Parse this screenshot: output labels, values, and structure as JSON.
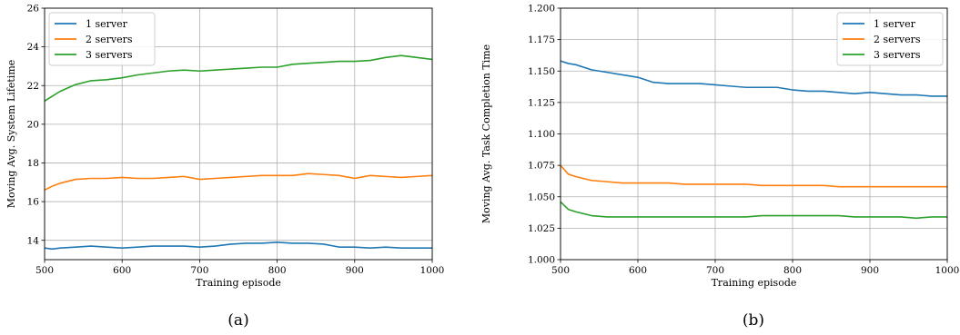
{
  "chart_data": [
    {
      "type": "line",
      "caption": "(a)",
      "xlabel": "Training episode",
      "ylabel": "Moving Avg. System Lifetime",
      "xlim": [
        500,
        1000
      ],
      "ylim": [
        13,
        26
      ],
      "xticks": [
        "500",
        "600",
        "700",
        "800",
        "900",
        "1000"
      ],
      "yticks": [
        "14",
        "16",
        "18",
        "20",
        "22",
        "24",
        "26"
      ],
      "grid": true,
      "legend_position": "top-left",
      "x": [
        500,
        510,
        520,
        540,
        560,
        580,
        600,
        620,
        640,
        660,
        680,
        700,
        720,
        740,
        760,
        780,
        800,
        820,
        840,
        860,
        880,
        900,
        920,
        940,
        960,
        980,
        1000
      ],
      "series": [
        {
          "name": "1 server",
          "color": "#1f77b4",
          "values": [
            13.6,
            13.55,
            13.6,
            13.65,
            13.7,
            13.65,
            13.6,
            13.65,
            13.7,
            13.7,
            13.7,
            13.65,
            13.7,
            13.8,
            13.85,
            13.85,
            13.9,
            13.85,
            13.85,
            13.8,
            13.65,
            13.65,
            13.6,
            13.65,
            13.6,
            13.6,
            13.6
          ]
        },
        {
          "name": "2 servers",
          "color": "#ff7f0e",
          "values": [
            16.6,
            16.8,
            16.95,
            17.15,
            17.2,
            17.2,
            17.25,
            17.2,
            17.2,
            17.25,
            17.3,
            17.15,
            17.2,
            17.25,
            17.3,
            17.35,
            17.35,
            17.35,
            17.45,
            17.4,
            17.35,
            17.2,
            17.35,
            17.3,
            17.25,
            17.3,
            17.35
          ]
        },
        {
          "name": "3 servers",
          "color": "#2ca02c",
          "values": [
            21.2,
            21.45,
            21.7,
            22.05,
            22.25,
            22.3,
            22.4,
            22.55,
            22.65,
            22.75,
            22.8,
            22.75,
            22.8,
            22.85,
            22.9,
            22.95,
            22.95,
            23.1,
            23.15,
            23.2,
            23.25,
            23.25,
            23.3,
            23.45,
            23.55,
            23.45,
            23.35
          ]
        }
      ]
    },
    {
      "type": "line",
      "caption": "(b)",
      "xlabel": "Training episode",
      "ylabel": "Moving Avg. Task Completion Time",
      "xlim": [
        500,
        1000
      ],
      "ylim": [
        1.0,
        1.2
      ],
      "xticks": [
        "500",
        "600",
        "700",
        "800",
        "900",
        "1000"
      ],
      "yticks": [
        "1.000",
        "1.025",
        "1.050",
        "1.075",
        "1.100",
        "1.125",
        "1.150",
        "1.175",
        "1.200"
      ],
      "grid": true,
      "legend_position": "top-right",
      "x": [
        500,
        510,
        520,
        540,
        560,
        580,
        600,
        620,
        640,
        660,
        680,
        700,
        720,
        740,
        760,
        780,
        800,
        820,
        840,
        860,
        880,
        900,
        920,
        940,
        960,
        980,
        1000
      ],
      "series": [
        {
          "name": "1 server",
          "color": "#1f77b4",
          "values": [
            1.158,
            1.156,
            1.155,
            1.151,
            1.149,
            1.147,
            1.145,
            1.141,
            1.14,
            1.14,
            1.14,
            1.139,
            1.138,
            1.137,
            1.137,
            1.137,
            1.135,
            1.134,
            1.134,
            1.133,
            1.132,
            1.133,
            1.132,
            1.131,
            1.131,
            1.13,
            1.13
          ]
        },
        {
          "name": "2 servers",
          "color": "#ff7f0e",
          "values": [
            1.075,
            1.068,
            1.066,
            1.063,
            1.062,
            1.061,
            1.061,
            1.061,
            1.061,
            1.06,
            1.06,
            1.06,
            1.06,
            1.06,
            1.059,
            1.059,
            1.059,
            1.059,
            1.059,
            1.058,
            1.058,
            1.058,
            1.058,
            1.058,
            1.058,
            1.058,
            1.058
          ]
        },
        {
          "name": "3 servers",
          "color": "#2ca02c",
          "values": [
            1.046,
            1.04,
            1.038,
            1.035,
            1.034,
            1.034,
            1.034,
            1.034,
            1.034,
            1.034,
            1.034,
            1.034,
            1.034,
            1.034,
            1.035,
            1.035,
            1.035,
            1.035,
            1.035,
            1.035,
            1.034,
            1.034,
            1.034,
            1.034,
            1.033,
            1.034,
            1.034
          ]
        }
      ]
    }
  ]
}
